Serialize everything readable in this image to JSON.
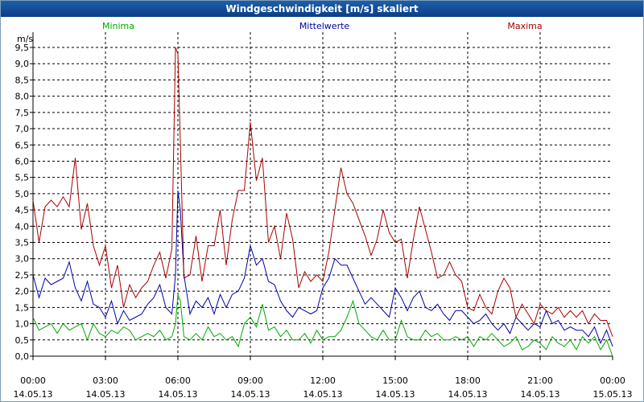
{
  "window": {
    "title": "Windgeschwindigkeit [m/s] skaliert"
  },
  "chart_data": {
    "type": "line",
    "title": "Windgeschwindigkeit [m/s] skaliert",
    "ylabel": "m/s",
    "xlabel": "",
    "ylim": [
      0,
      9.5
    ],
    "xlim_hours": [
      0,
      24
    ],
    "grid": true,
    "yticks": [
      "0,0",
      "0,5",
      "1,0",
      "1,5",
      "2,0",
      "2,5",
      "3,0",
      "3,5",
      "4,0",
      "4,5",
      "5,0",
      "5,5",
      "6,0",
      "6,5",
      "7,0",
      "7,5",
      "8,0",
      "8,5",
      "9,0",
      "9,5"
    ],
    "xticks": [
      {
        "time": "00:00",
        "date": "14.05.13"
      },
      {
        "time": "03:00",
        "date": "14.05.13"
      },
      {
        "time": "06:00",
        "date": "14.05.13"
      },
      {
        "time": "09:00",
        "date": "14.05.13"
      },
      {
        "time": "12:00",
        "date": "14.05.13"
      },
      {
        "time": "15:00",
        "date": "14.05.13"
      },
      {
        "time": "18:00",
        "date": "14.05.13"
      },
      {
        "time": "21:00",
        "date": "14.05.13"
      },
      {
        "time": "00:00",
        "date": "15.05.13"
      }
    ],
    "series": [
      {
        "name": "Minima",
        "color": "#00aa00",
        "x": [
          0,
          0.25,
          0.5,
          0.75,
          1,
          1.25,
          1.5,
          1.75,
          2,
          2.25,
          2.5,
          2.75,
          3,
          3.25,
          3.5,
          3.75,
          4,
          4.25,
          4.5,
          4.75,
          5,
          5.25,
          5.5,
          5.75,
          5.9,
          6,
          6.1,
          6.25,
          6.5,
          6.75,
          7,
          7.25,
          7.5,
          7.75,
          8,
          8.25,
          8.5,
          8.75,
          9,
          9.25,
          9.5,
          9.75,
          10,
          10.25,
          10.5,
          10.75,
          11,
          11.25,
          11.5,
          11.75,
          12,
          12.25,
          12.5,
          12.75,
          13,
          13.25,
          13.5,
          13.75,
          14,
          14.25,
          14.5,
          14.75,
          15,
          15.25,
          15.5,
          15.75,
          16,
          16.25,
          16.5,
          16.75,
          17,
          17.25,
          17.5,
          17.75,
          18,
          18.25,
          18.5,
          18.75,
          19,
          19.25,
          19.5,
          19.75,
          20,
          20.25,
          20.5,
          20.75,
          21,
          21.25,
          21.5,
          21.75,
          22,
          22.25,
          22.5,
          22.75,
          23,
          23.25,
          23.5,
          23.75,
          24
        ],
        "values": [
          1.2,
          0.8,
          0.9,
          1.0,
          0.7,
          1.0,
          0.8,
          0.9,
          1.0,
          0.5,
          1.0,
          0.7,
          0.6,
          0.8,
          0.7,
          0.9,
          0.8,
          0.5,
          0.6,
          0.7,
          0.6,
          0.8,
          0.5,
          0.6,
          1.0,
          1.9,
          1.7,
          0.6,
          0.5,
          0.7,
          0.5,
          0.9,
          0.6,
          0.7,
          0.5,
          0.6,
          0.3,
          1.0,
          1.2,
          0.9,
          1.6,
          0.8,
          0.9,
          0.6,
          0.8,
          0.5,
          0.5,
          0.7,
          0.4,
          0.8,
          0.5,
          0.6,
          0.6,
          0.8,
          1.2,
          1.7,
          1.0,
          0.8,
          0.6,
          0.5,
          0.8,
          0.5,
          0.5,
          1.1,
          0.6,
          0.5,
          0.5,
          0.8,
          0.6,
          0.7,
          0.5,
          0.5,
          0.6,
          0.5,
          0.6,
          0.3,
          0.6,
          0.5,
          0.7,
          0.5,
          0.3,
          0.4,
          0.6,
          0.2,
          0.3,
          0.5,
          0.4,
          0.2,
          0.6,
          0.4,
          0.3,
          0.5,
          0.2,
          0.6,
          0.4,
          0.6,
          0.2,
          0.5,
          0.0
        ]
      },
      {
        "name": "Mittelwerte",
        "color": "#0000aa",
        "x": [
          0,
          0.25,
          0.5,
          0.75,
          1,
          1.25,
          1.5,
          1.75,
          2,
          2.25,
          2.5,
          2.75,
          3,
          3.25,
          3.5,
          3.75,
          4,
          4.25,
          4.5,
          4.75,
          5,
          5.25,
          5.5,
          5.75,
          5.9,
          6,
          6.1,
          6.25,
          6.5,
          6.75,
          7,
          7.25,
          7.5,
          7.75,
          8,
          8.25,
          8.5,
          8.75,
          9,
          9.25,
          9.5,
          9.75,
          10,
          10.25,
          10.5,
          10.75,
          11,
          11.25,
          11.5,
          11.75,
          12,
          12.25,
          12.5,
          12.75,
          13,
          13.25,
          13.5,
          13.75,
          14,
          14.25,
          14.5,
          14.75,
          15,
          15.25,
          15.5,
          15.75,
          16,
          16.25,
          16.5,
          16.75,
          17,
          17.25,
          17.5,
          17.75,
          18,
          18.25,
          18.5,
          18.75,
          19,
          19.25,
          19.5,
          19.75,
          20,
          20.25,
          20.5,
          20.75,
          21,
          21.25,
          21.5,
          21.75,
          22,
          22.25,
          22.5,
          22.75,
          23,
          23.25,
          23.5,
          23.75,
          24
        ],
        "values": [
          2.5,
          1.8,
          2.4,
          2.2,
          2.3,
          2.4,
          2.9,
          2.1,
          1.7,
          2.3,
          1.6,
          1.5,
          1.2,
          1.7,
          1.0,
          1.4,
          1.1,
          1.2,
          1.3,
          1.6,
          1.8,
          2.2,
          1.5,
          1.3,
          2.5,
          5.1,
          4.5,
          2.5,
          1.3,
          1.7,
          1.5,
          1.8,
          1.3,
          1.9,
          1.5,
          1.9,
          2.0,
          2.4,
          3.4,
          2.8,
          3.0,
          2.3,
          2.2,
          1.7,
          1.4,
          1.2,
          1.5,
          1.4,
          1.3,
          1.4,
          2.1,
          2.4,
          3.0,
          2.8,
          2.8,
          2.4,
          2.0,
          1.6,
          1.8,
          1.6,
          1.4,
          1.2,
          2.1,
          1.8,
          1.4,
          1.8,
          2.0,
          1.5,
          1.4,
          1.6,
          1.3,
          1.1,
          1.4,
          1.4,
          1.2,
          1.0,
          1.1,
          1.3,
          1.0,
          0.8,
          1.0,
          0.7,
          1.2,
          1.0,
          0.8,
          1.0,
          0.9,
          1.4,
          1.0,
          1.1,
          0.8,
          0.9,
          0.8,
          0.8,
          0.6,
          0.9,
          0.4,
          0.8,
          0.3
        ]
      },
      {
        "name": "Maxima",
        "color": "#aa0000",
        "x": [
          0,
          0.25,
          0.5,
          0.75,
          1,
          1.25,
          1.5,
          1.75,
          2,
          2.25,
          2.5,
          2.75,
          3,
          3.25,
          3.5,
          3.75,
          4,
          4.25,
          4.5,
          4.75,
          5,
          5.25,
          5.5,
          5.75,
          5.9,
          6,
          6.1,
          6.25,
          6.5,
          6.75,
          7,
          7.25,
          7.5,
          7.75,
          8,
          8.25,
          8.5,
          8.75,
          9,
          9.25,
          9.5,
          9.75,
          10,
          10.25,
          10.5,
          10.75,
          11,
          11.25,
          11.5,
          11.75,
          12,
          12.25,
          12.5,
          12.75,
          13,
          13.25,
          13.5,
          13.75,
          14,
          14.25,
          14.5,
          14.75,
          15,
          15.25,
          15.5,
          15.75,
          16,
          16.25,
          16.5,
          16.75,
          17,
          17.25,
          17.5,
          17.75,
          18,
          18.25,
          18.5,
          18.75,
          19,
          19.25,
          19.5,
          19.75,
          20,
          20.25,
          20.5,
          20.75,
          21,
          21.25,
          21.5,
          21.75,
          22,
          22.25,
          22.5,
          22.75,
          23,
          23.25,
          23.5,
          23.75,
          24
        ],
        "values": [
          4.8,
          3.5,
          4.6,
          4.8,
          4.6,
          4.9,
          4.6,
          6.1,
          3.9,
          4.7,
          3.4,
          2.8,
          3.4,
          2.1,
          2.8,
          1.5,
          2.2,
          1.8,
          2.1,
          2.3,
          2.8,
          3.2,
          2.4,
          3.3,
          9.5,
          9.3,
          6.6,
          2.4,
          2.5,
          3.7,
          2.3,
          3.4,
          3.4,
          4.5,
          2.8,
          4.2,
          5.1,
          5.1,
          7.2,
          5.4,
          6.1,
          3.5,
          4.0,
          3.0,
          4.4,
          3.6,
          2.1,
          2.6,
          2.3,
          2.5,
          2.3,
          3.2,
          4.5,
          5.8,
          5.0,
          4.7,
          4.2,
          3.7,
          3.1,
          3.6,
          4.5,
          3.8,
          3.5,
          3.6,
          2.4,
          3.6,
          4.6,
          3.9,
          3.2,
          2.4,
          2.5,
          2.9,
          2.5,
          2.3,
          1.5,
          1.4,
          1.9,
          1.5,
          1.3,
          2.0,
          2.4,
          2.1,
          1.2,
          1.6,
          1.3,
          1.0,
          1.6,
          1.4,
          1.3,
          1.5,
          1.2,
          1.4,
          1.2,
          1.4,
          1.0,
          1.3,
          1.1,
          1.1,
          0.6
        ]
      }
    ]
  }
}
